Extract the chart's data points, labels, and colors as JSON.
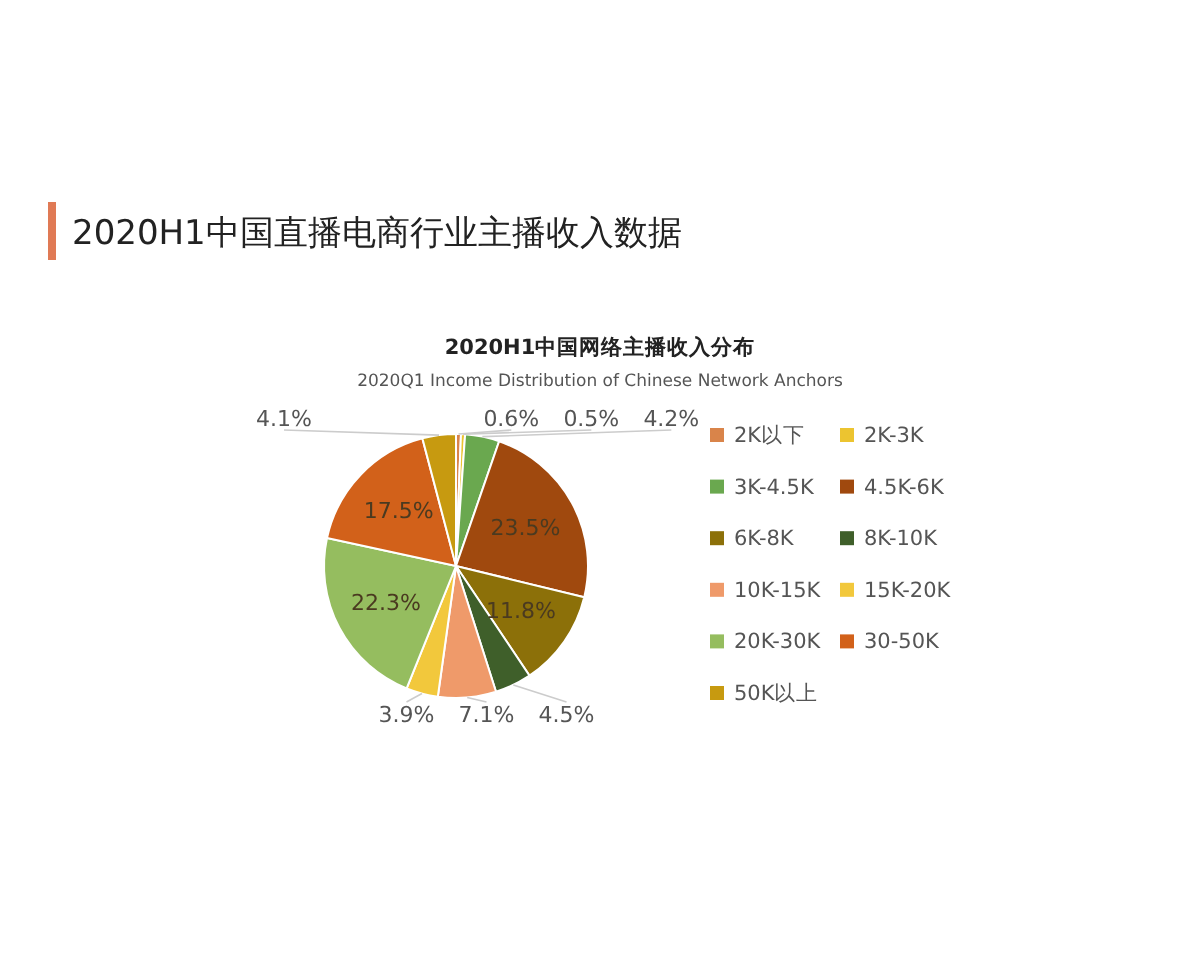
{
  "chart_data": {
    "type": "pie",
    "title": "2020H1中国直播电商行业主播收入数据",
    "subtitle": "2020H1中国网络主播收入分布",
    "annotations": [
      "2020Q1 Income Distribution of Chinese Network Anchors"
    ],
    "categories": [
      "2K以下",
      "2K-3K",
      "3K-4.5K",
      "4.5K-6K",
      "6K-8K",
      "8K-10K",
      "10K-15K",
      "15K-20K",
      "20K-30K",
      "30-50K",
      "50K以上"
    ],
    "values": [
      0.6,
      0.5,
      4.2,
      23.5,
      11.8,
      4.5,
      7.1,
      3.9,
      22.3,
      17.5,
      4.1
    ],
    "value_labels": [
      "0.6%",
      "0.5%",
      "4.2%",
      "23.5%",
      "11.8%",
      "4.5%",
      "7.1%",
      "3.9%",
      "22.3%",
      "17.5%",
      "4.1%"
    ],
    "colors": [
      "#d9844a",
      "#ecc430",
      "#6aa84f",
      "#a0490e",
      "#8c7009",
      "#3f5f2a",
      "#ef9a6a",
      "#f2c83c",
      "#95bd5f",
      "#d2611a",
      "#c79a10"
    ],
    "legend": "right"
  }
}
